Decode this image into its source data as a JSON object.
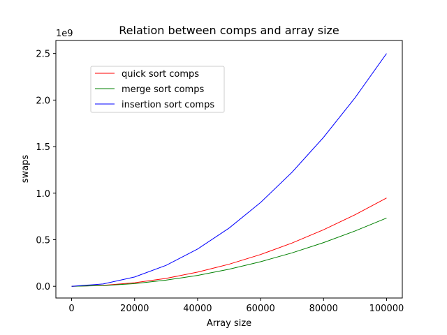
{
  "chart_data": {
    "type": "line",
    "title": "Relation between comps and array size",
    "xlabel": "Array size",
    "ylabel": "swaps",
    "y_offset_label": "1e9",
    "xlim": [
      -5000,
      105000
    ],
    "ylim": [
      -0.126,
      2.64
    ],
    "x_ticks": [
      0,
      20000,
      40000,
      60000,
      80000,
      100000
    ],
    "x_tick_labels": [
      "0",
      "20000",
      "40000",
      "60000",
      "80000",
      "100000"
    ],
    "y_ticks": [
      0.0,
      0.5,
      1.0,
      1.5,
      2.0,
      2.5
    ],
    "y_tick_labels": [
      "0.0",
      "0.5",
      "1.0",
      "1.5",
      "2.0",
      "2.5"
    ],
    "grid": false,
    "legend_position": "upper-left",
    "series": [
      {
        "name": "quick sort comps",
        "color": "#ff0000",
        "x": [
          0,
          10000,
          20000,
          30000,
          40000,
          50000,
          60000,
          70000,
          80000,
          90000,
          100000
        ],
        "values": [
          0.0,
          0.0095,
          0.038,
          0.085,
          0.152,
          0.237,
          0.341,
          0.465,
          0.607,
          0.768,
          0.948
        ]
      },
      {
        "name": "merge sort comps",
        "color": "#008000",
        "x": [
          0,
          10000,
          20000,
          30000,
          40000,
          50000,
          60000,
          70000,
          80000,
          90000,
          100000
        ],
        "values": [
          0.0,
          0.0073,
          0.029,
          0.066,
          0.117,
          0.183,
          0.264,
          0.359,
          0.469,
          0.594,
          0.733
        ]
      },
      {
        "name": "insertion sort comps",
        "color": "#0000ff",
        "x": [
          0,
          10000,
          20000,
          30000,
          40000,
          50000,
          60000,
          70000,
          80000,
          90000,
          100000
        ],
        "values": [
          0.0,
          0.025,
          0.1,
          0.225,
          0.4,
          0.625,
          0.9,
          1.225,
          1.6,
          2.025,
          2.5
        ]
      }
    ]
  }
}
